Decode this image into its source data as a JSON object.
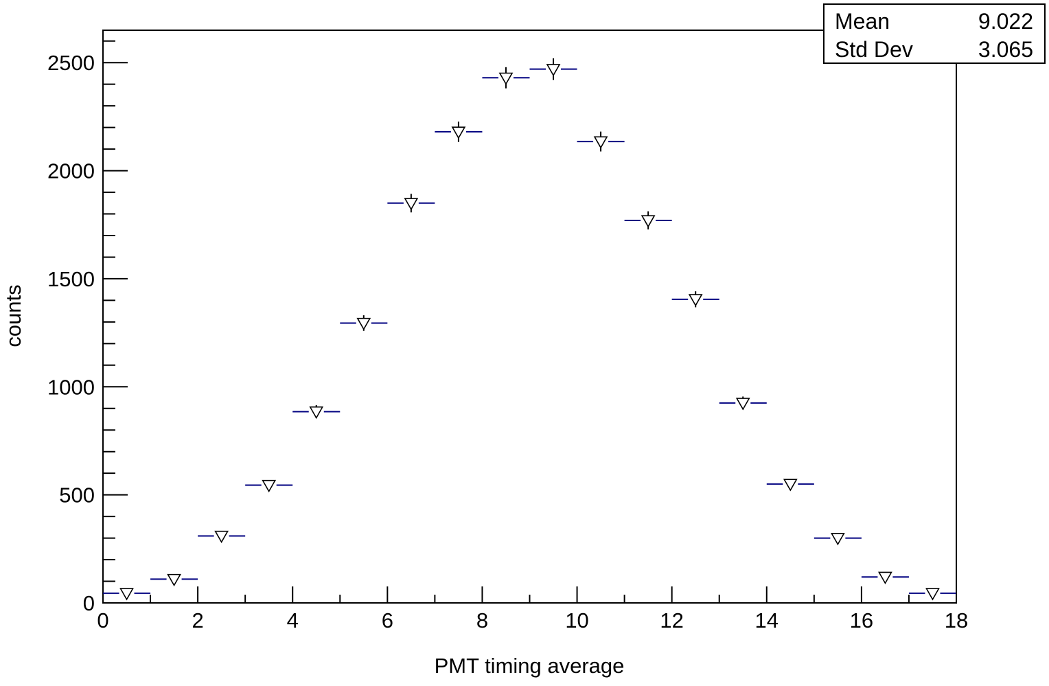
{
  "chart_data": {
    "type": "scatter",
    "title": "",
    "xlabel": "PMT timing average",
    "ylabel": "counts",
    "xlim": [
      0,
      18
    ],
    "ylim": [
      0,
      2650
    ],
    "x_ticks": [
      0,
      2,
      4,
      6,
      8,
      10,
      12,
      14,
      16,
      18
    ],
    "y_ticks": [
      0,
      500,
      1000,
      1500,
      2000,
      2500
    ],
    "x_tick_labels": [
      "0",
      "2",
      "4",
      "6",
      "8",
      "10",
      "12",
      "14",
      "16",
      "18"
    ],
    "y_tick_labels": [
      "0",
      "500",
      "1000",
      "1500",
      "2000",
      "2500"
    ],
    "grid": false,
    "marker": "open-triangle-down",
    "bin_width": 1,
    "series": [
      {
        "x": [
          0.5,
          1.5,
          2.5,
          3.5,
          4.5,
          5.5,
          6.5,
          7.5,
          8.5,
          9.5,
          10.5,
          11.5,
          12.5,
          13.5,
          14.5,
          15.5,
          16.5,
          17.5
        ],
        "y": [
          45,
          110,
          310,
          545,
          885,
          1295,
          1850,
          2180,
          2430,
          2470,
          2135,
          1770,
          1405,
          925,
          550,
          300,
          120,
          45
        ],
        "yerr": [
          7,
          10,
          18,
          23,
          30,
          36,
          43,
          47,
          49,
          50,
          46,
          42,
          37,
          30,
          23,
          17,
          11,
          7
        ]
      }
    ],
    "color": "#000080",
    "stats_box": {
      "placement": "top-right",
      "entries": [
        {
          "label": "Mean",
          "value": "9.022"
        },
        {
          "label": "Std Dev",
          "value": "3.065"
        }
      ]
    }
  }
}
